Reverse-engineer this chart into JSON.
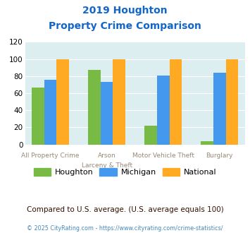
{
  "title_line1": "2019 Houghton",
  "title_line2": "Property Crime Comparison",
  "cat_labels_top": [
    "All Property Crime",
    "Arson",
    "Motor Vehicle Theft",
    "Burglary"
  ],
  "cat_labels_bot": [
    "",
    "Larceny & Theft",
    "",
    ""
  ],
  "houghton": [
    67,
    87,
    22,
    4
  ],
  "michigan": [
    76,
    73,
    81,
    84
  ],
  "national": [
    100,
    100,
    100,
    100
  ],
  "houghton_color": "#77bb44",
  "michigan_color": "#4499ee",
  "national_color": "#ffaa22",
  "bg_color": "#ddeef0",
  "ylim": [
    0,
    120
  ],
  "yticks": [
    0,
    20,
    40,
    60,
    80,
    100,
    120
  ],
  "footnote": "Compared to U.S. average. (U.S. average equals 100)",
  "copyright": "© 2025 CityRating.com - https://www.cityrating.com/crime-statistics/",
  "title_color": "#1166cc",
  "footnote_color": "#331100",
  "copyright_color": "#4488bb",
  "xtick_color": "#998877"
}
